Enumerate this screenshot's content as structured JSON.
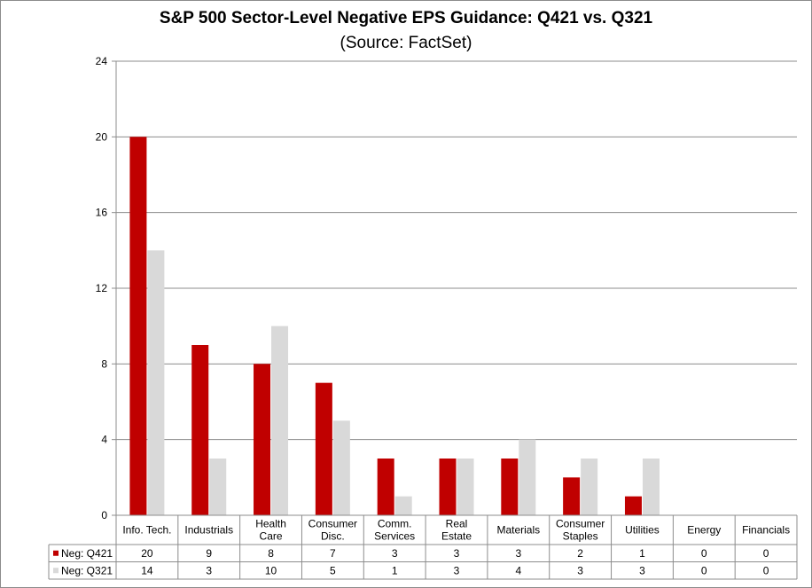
{
  "chart_data": {
    "type": "bar",
    "title": "S&P 500 Sector-Level Negative EPS Guidance: Q421 vs. Q321",
    "subtitle": "(Source: FactSet)",
    "categories": [
      [
        "Info. Tech."
      ],
      [
        "Industrials"
      ],
      [
        "Health",
        "Care"
      ],
      [
        "Consumer",
        "Disc."
      ],
      [
        "Comm.",
        "Services"
      ],
      [
        "Real",
        "Estate"
      ],
      [
        "Materials"
      ],
      [
        "Consumer",
        "Staples"
      ],
      [
        "Utilities"
      ],
      [
        "Energy"
      ],
      [
        "Financials"
      ]
    ],
    "series": [
      {
        "name": "Neg: Q421",
        "color": "#c00000",
        "values": [
          20,
          9,
          8,
          7,
          3,
          3,
          3,
          2,
          1,
          0,
          0
        ]
      },
      {
        "name": "Neg: Q321",
        "color": "#d9d9d9",
        "values": [
          14,
          3,
          10,
          5,
          1,
          3,
          4,
          3,
          3,
          0,
          0
        ]
      }
    ],
    "ylim": [
      0,
      24
    ],
    "yticks": [
      0,
      4,
      8,
      12,
      16,
      20,
      24
    ],
    "grid": true,
    "legend": "data-table"
  }
}
